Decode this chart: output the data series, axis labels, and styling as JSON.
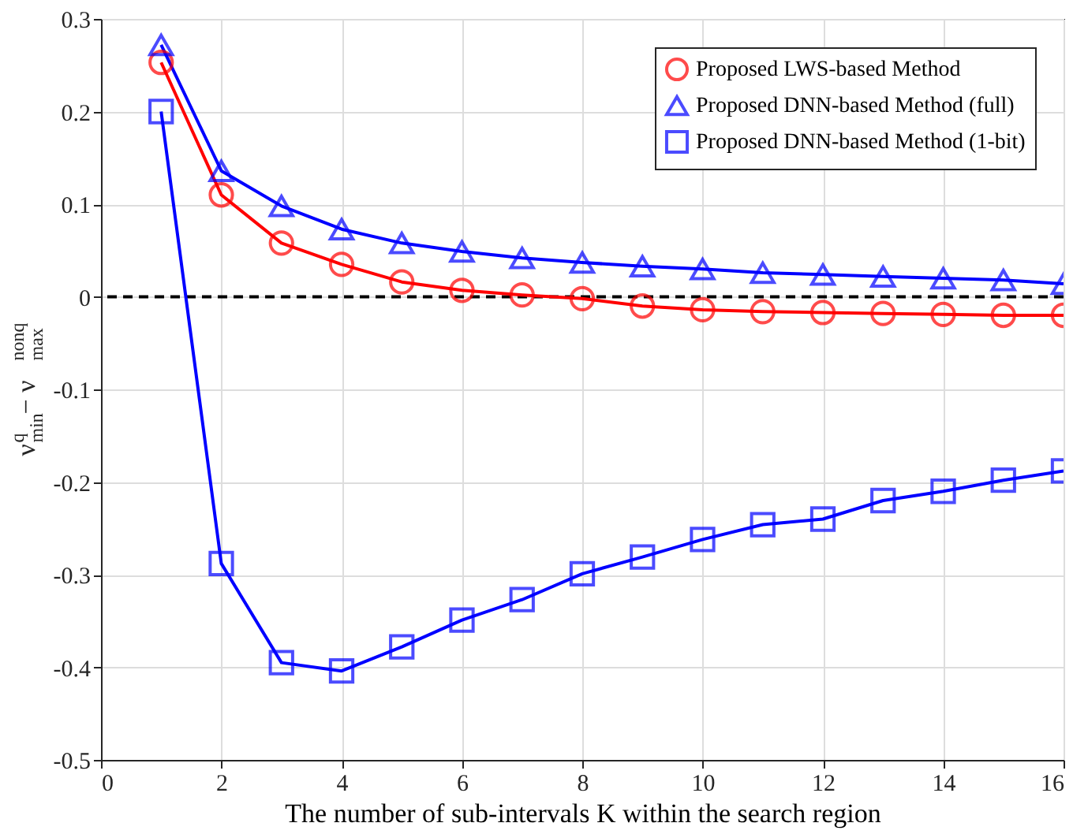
{
  "chart_data": {
    "type": "line",
    "xlabel": "The number of sub-intervals K within the search region",
    "ylabel": "ν$_{min}$$^{q}$ − ν$_{max}$$^{nonq}$",
    "x": [
      1,
      2,
      3,
      4,
      5,
      6,
      7,
      8,
      9,
      10,
      11,
      12,
      13,
      14,
      15,
      16
    ],
    "series": [
      {
        "name": "Proposed LWS-based Method",
        "color": "#ff0000",
        "marker": "circle",
        "values": [
          0.253,
          0.11,
          0.058,
          0.035,
          0.016,
          0.007,
          0.002,
          -0.002,
          -0.01,
          -0.014,
          -0.016,
          -0.017,
          -0.018,
          -0.019,
          -0.02,
          -0.02
        ]
      },
      {
        "name": "Proposed DNN-based Method (full)",
        "color": "#0000ff",
        "marker": "triangle",
        "values": [
          0.272,
          0.136,
          0.098,
          0.073,
          0.058,
          0.049,
          0.042,
          0.037,
          0.033,
          0.03,
          0.026,
          0.024,
          0.022,
          0.02,
          0.018,
          0.014
        ]
      },
      {
        "name": "Proposed DNN-based Method (1-bit)",
        "color": "#0000ff",
        "marker": "square",
        "values": [
          0.2,
          -0.288,
          -0.395,
          -0.404,
          -0.378,
          -0.349,
          -0.327,
          -0.299,
          -0.281,
          -0.262,
          -0.246,
          -0.24,
          -0.22,
          -0.21,
          -0.198,
          -0.188
        ]
      }
    ],
    "xlim": [
      0,
      16
    ],
    "xticks": [
      0,
      2,
      4,
      6,
      8,
      10,
      12,
      14,
      16
    ],
    "ylim": [
      -0.5,
      0.3
    ],
    "yticks": [
      -0.5,
      -0.4,
      -0.3,
      -0.2,
      -0.1,
      0,
      0.1,
      0.2,
      0.3
    ],
    "ref_lines": [
      {
        "axis": "y",
        "value": 0,
        "color": "#000000",
        "line_style": "dashed"
      }
    ],
    "grid": true,
    "legend": "top right",
    "line_style": "solid"
  }
}
